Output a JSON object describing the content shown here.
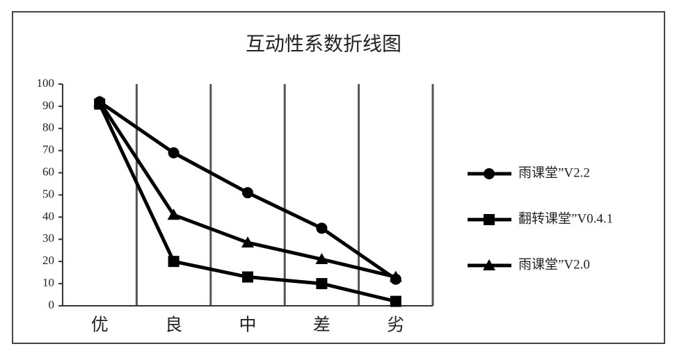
{
  "chart_data": {
    "type": "line",
    "title": "互动性系数折线图",
    "categories": [
      "优",
      "良",
      "中",
      "差",
      "劣"
    ],
    "series": [
      {
        "name": "雨课堂”V2.2",
        "color": "#000000",
        "marker": "circle",
        "values": [
          92,
          69,
          51,
          35,
          12
        ]
      },
      {
        "name": "翻转课堂”V0.4.1",
        "color": "#000000",
        "marker": "square",
        "values": [
          91,
          20,
          13,
          10,
          2
        ]
      },
      {
        "name": "雨课堂”V2.0",
        "color": "#000000",
        "marker": "triangle",
        "values": [
          92,
          41,
          28.5,
          21,
          13
        ]
      }
    ],
    "ylim": [
      0,
      100
    ],
    "yticks": [
      0,
      10,
      20,
      30,
      40,
      50,
      60,
      70,
      80,
      90,
      100
    ],
    "grid": false,
    "legend": "right"
  }
}
